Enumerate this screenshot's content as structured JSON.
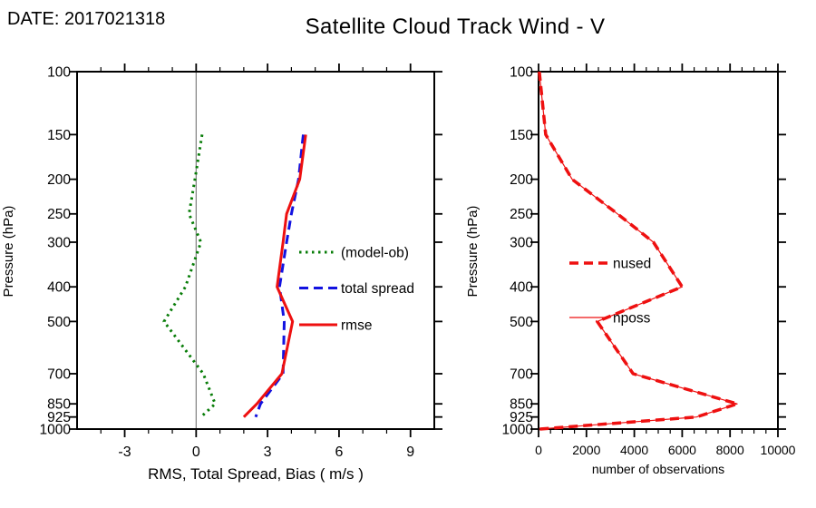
{
  "header": {
    "date_label": "DATE: 2017021318",
    "title": "Satellite Cloud Track Wind - V"
  },
  "colors": {
    "green": "#077c07",
    "blue": "#1212e0",
    "red": "#ee1010",
    "zero_line": "#808080",
    "axis": "#000000"
  },
  "chart_data": [
    {
      "id": "left",
      "type": "line",
      "xlabel": "RMS, Total Spread, Bias ( m/s )",
      "ylabel": "Pressure (hPa)",
      "xlim": [
        -5,
        10
      ],
      "xticks": [
        -3,
        0,
        3,
        6,
        9
      ],
      "xminor_step": 1,
      "yscale": "log",
      "ylim": [
        100,
        1000
      ],
      "ylevels": [
        100,
        150,
        200,
        250,
        300,
        400,
        500,
        700,
        850,
        925,
        1000
      ],
      "zero_line_x": 0,
      "grid": false,
      "legend_position": "middle-right-inside",
      "series": [
        {
          "name": "(model-ob)",
          "style": "dotted",
          "color_key": "green",
          "width": 3,
          "levels": [
            150,
            200,
            250,
            300,
            400,
            500,
            700,
            850,
            925
          ],
          "values": [
            0.25,
            -0.05,
            -0.3,
            0.2,
            -0.45,
            -1.35,
            0.3,
            0.8,
            0.2
          ]
        },
        {
          "name": "total spread",
          "style": "dashed",
          "color_key": "blue",
          "width": 3,
          "levels": [
            150,
            200,
            250,
            300,
            400,
            500,
            700,
            850,
            925
          ],
          "values": [
            4.5,
            4.3,
            4.0,
            3.8,
            3.5,
            3.7,
            3.65,
            2.7,
            2.5
          ]
        },
        {
          "name": "rmse",
          "style": "solid",
          "color_key": "red",
          "width": 3,
          "levels": [
            150,
            200,
            250,
            300,
            400,
            500,
            700,
            850,
            925
          ],
          "values": [
            4.6,
            4.35,
            3.8,
            3.65,
            3.4,
            4.05,
            3.6,
            2.55,
            2.0
          ]
        }
      ],
      "legend": [
        "(model-ob)",
        "total spread",
        "rmse"
      ]
    },
    {
      "id": "right",
      "type": "line",
      "xlabel": "number of observations",
      "ylabel": "Pressure (hPa)",
      "xlim": [
        0,
        10000
      ],
      "xticks": [
        0,
        2000,
        4000,
        6000,
        8000,
        10000
      ],
      "xminor_step": 500,
      "yscale": "log",
      "ylim": [
        100,
        1000
      ],
      "ylevels": [
        100,
        150,
        200,
        250,
        300,
        400,
        500,
        700,
        850,
        925,
        1000
      ],
      "zero_line_x": null,
      "grid": false,
      "legend_position": "middle-left-inside",
      "series": [
        {
          "name": "nposs",
          "style": "solid",
          "color_key": "red",
          "width": 1.2,
          "levels": [
            100,
            150,
            200,
            250,
            300,
            400,
            500,
            700,
            850,
            925,
            1000
          ],
          "values": [
            30,
            300,
            1400,
            3300,
            4800,
            6000,
            2450,
            3950,
            8300,
            6600,
            30
          ]
        },
        {
          "name": "nused",
          "style": "dashed",
          "color_key": "red",
          "width": 3.5,
          "levels": [
            100,
            150,
            200,
            250,
            300,
            400,
            500,
            700,
            850,
            925,
            1000
          ],
          "values": [
            30,
            300,
            1400,
            3300,
            4800,
            6000,
            2450,
            3950,
            8300,
            6600,
            30
          ]
        }
      ],
      "legend": [
        "nused",
        "nposs"
      ]
    }
  ]
}
